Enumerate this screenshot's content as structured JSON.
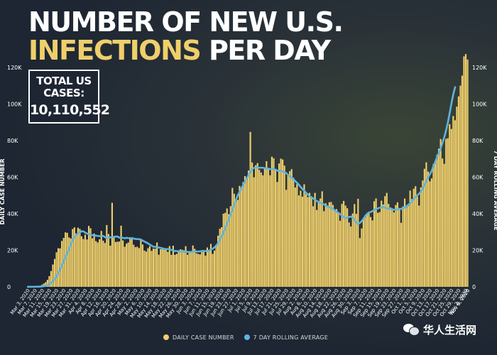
{
  "title": {
    "line1": "NUMBER OF NEW U.S.",
    "line2_highlight": "INFECTIONS",
    "line2_rest": " PER DAY"
  },
  "total_box": {
    "label": "TOTAL US CASES:",
    "value": "10,110,552"
  },
  "legend": {
    "daily": "DAILY CASE NUMBER",
    "avg": "7 DAY ROLLING AVERAGE"
  },
  "watermark": "华人生活网",
  "colors": {
    "bar": "#efcf6c",
    "line": "#5fb4de",
    "background": "#1d2632",
    "title_highlight": "#efcf6c",
    "text": "#ffffff"
  },
  "chart_data": {
    "type": "bar",
    "title": "NUMBER OF NEW U.S. INFECTIONS PER DAY",
    "ylabel_left": "DAILY CASE NUMBER",
    "ylabel_right": "7 DAY ROLLING AVERAGE",
    "ylim": [
      0,
      120000
    ],
    "yticks": [
      0,
      20000,
      40000,
      60000,
      80000,
      100000,
      120000
    ],
    "ytick_labels": [
      "0",
      "20K",
      "40K",
      "60K",
      "80K",
      "100K",
      "120K"
    ],
    "grid": false,
    "legend_position": "bottom",
    "x_tick_labels": [
      "Mar 3, 2020",
      "Mar 7, 2020",
      "Mar 11, 2020",
      "Mar 15, 2020",
      "Mar 19, 2020",
      "Mar 23, 2020",
      "Mar 27, 2020",
      "Mar 31, 2020",
      "Apr 4, 2020",
      "Apr 8, 2020",
      "Apr 12, 2020",
      "Apr 16, 2020",
      "Apr 20, 2020",
      "Apr 24, 2020",
      "Apr 28, 2020",
      "May 2, 2020",
      "May 6, 2020",
      "May 10, 2020",
      "May 14, 2020",
      "May 18, 2020",
      "May 22, 2020",
      "May 26, 2020",
      "May 30, 2020",
      "Jun 3, 2020",
      "Jun 7, 2020",
      "Jun 11, 2020",
      "Jun 15, 2020",
      "Jun 19, 2020",
      "Jun 23, 2020",
      "Jun 27, 2020",
      "Jul 1, 2020",
      "Jul 5, 2020",
      "Jul 9, 2020",
      "Jul 13, 2020",
      "Jul 17, 2020",
      "Jul 21, 2020",
      "Jul 25, 2020",
      "Jul 29, 2020",
      "Aug 2, 2020",
      "Aug 6, 2020",
      "Aug 10, 2020",
      "Aug 14, 2020",
      "Aug 18, 2020",
      "Aug 22, 2020",
      "Aug 26, 2020",
      "Aug 30, 2020",
      "Sep 3, 2020",
      "Sep 7, 2020",
      "Sep 11, 2020",
      "Sep 15, 2020",
      "Sep 19, 2020",
      "Sep 23, 2020",
      "Sep 27, 2020",
      "Oct 1, 2020",
      "Oct 5, 2020",
      "Oct 9, 2020",
      "Oct 13, 2020",
      "Oct 17, 2020",
      "Oct 21, 2020",
      "Oct 25, 2020",
      "Oct 29, 2020",
      "Nov 2, 2020",
      "Nov 6, 2020",
      "Nov 9, 2020"
    ],
    "x_tick_every": 4,
    "series": [
      {
        "name": "DAILY CASE NUMBER",
        "type": "bar",
        "values": [
          23,
          41,
          58,
          74,
          103,
          161,
          339,
          540,
          1180,
          1820,
          2560,
          3830,
          5860,
          8640,
          12220,
          15240,
          18880,
          21110,
          21040,
          25100,
          26760,
          29810,
          29540,
          27060,
          26480,
          31650,
          32540,
          29230,
          32360,
          31690,
          27640,
          26130,
          28520,
          25900,
          33330,
          32060,
          26520,
          29130,
          25010,
          24300,
          26010,
          30570,
          25240,
          24010,
          33810,
          28940,
          22520,
          45960,
          27270,
          24510,
          24770,
          24740,
          33460,
          25390,
          21950,
          23640,
          24270,
          27050,
          26410,
          23030,
          21720,
          21960,
          21200,
          26040,
          23170,
          19850,
          19280,
          21130,
          22220,
          19690,
          20940,
          20860,
          24260,
          17590,
          20600,
          20720,
          20300,
          20690,
          19110,
          22310,
          17510,
          22500,
          17530,
          18020,
          19250,
          20490,
          20300,
          19970,
          22240,
          17540,
          19380,
          19340,
          22630,
          20780,
          18360,
          18020,
          17760,
          19020,
          19060,
          17100,
          21530,
          19920,
          23470,
          18050,
          19810,
          23090,
          27990,
          31770,
          32630,
          40020,
          40480,
          42880,
          39780,
          44150,
          54110,
          50930,
          47260,
          47540,
          55220,
          53450,
          57270,
          60580,
          59570,
          63640,
          84740,
          68040,
          59930,
          66520,
          67680,
          63950,
          62520,
          60990,
          65320,
          68720,
          65040,
          61010,
          71200,
          70370,
          64120,
          57370,
          67480,
          70140,
          69650,
          66320,
          53080,
          61040,
          63330,
          64370,
          59700,
          54330,
          56180,
          50010,
          52620,
          49310,
          56080,
          50700,
          49130,
          51400,
          49500,
          44070,
          51400,
          42020,
          46570,
          48340,
          52260,
          41400,
          45690,
          43900,
          46290,
          46380,
          44810,
          41640,
          42510,
          40960,
          36150,
          45370,
          46980,
          44470,
          42980,
          35210,
          33020,
          40150,
          45270,
          39940,
          48170,
          26690,
          31930,
          37690,
          38160,
          39730,
          41110,
          38170,
          36370,
          46810,
          48350,
          40480,
          40900,
          47120,
          45060,
          49610,
          51390,
          45350,
          42730,
          41940,
          40720,
          44760,
          46250,
          42350,
          35000,
          44000,
          48290,
          43440,
          44200,
          52650,
          48010,
          53660,
          55050,
          49450,
          44460,
          54440,
          58160,
          64560,
          68110,
          63060,
          57730,
          59290,
          67170,
          68060,
          72310,
          75630,
          80870,
          70170,
          67280,
          80910,
          81320,
          88960,
          86350,
          93450,
          91120,
          98590,
          104150,
          110050,
          115530,
          126060,
          127320,
          124350
        ]
      },
      {
        "name": "7 DAY ROLLING AVERAGE",
        "type": "line",
        "values": [
          23,
          32,
          41,
          49,
          60,
          77,
          114,
          167,
          281,
          411,
          571,
          921,
          1349,
          2091,
          3117,
          4347,
          5941,
          7751,
          9551,
          11661,
          13991,
          16580,
          18650,
          20840,
          23400,
          25730,
          27400,
          28480,
          29160,
          29820,
          30400,
          30340,
          29600,
          29150,
          28740,
          28620,
          28290,
          28090,
          28000,
          27850,
          27740,
          27680,
          27850,
          27140,
          26750,
          27040,
          27020,
          27160,
          27380,
          27530,
          27490,
          26890,
          26850,
          26820,
          26530,
          26830,
          26650,
          26590,
          26620,
          26380,
          26180,
          26120,
          26060,
          25810,
          25240,
          24740,
          24270,
          23680,
          23080,
          22460,
          21910,
          21880,
          21640,
          21490,
          21310,
          21060,
          20780,
          20670,
          20670,
          20420,
          20180,
          19910,
          19580,
          19510,
          19500,
          19340,
          19230,
          19110,
          19140,
          19100,
          19110,
          19060,
          19420,
          19340,
          19340,
          19340,
          19390,
          19660,
          19640,
          19540,
          19570,
          19820,
          20440,
          20870,
          21660,
          22490,
          24030,
          25930,
          27540,
          29830,
          32270,
          34530,
          37200,
          39850,
          42370,
          45050,
          47820,
          50330,
          51960,
          54030,
          55720,
          57740,
          59320,
          61370,
          63150,
          64380,
          65100,
          65150,
          65350,
          65110,
          65140,
          65140,
          64850,
          64710,
          64650,
          64350,
          64470,
          64360,
          64060,
          63580,
          63520,
          63540,
          63010,
          62840,
          62090,
          61220,
          60300,
          59730,
          58730,
          57790,
          56820,
          55800,
          54540,
          53470,
          52470,
          51420,
          50420,
          49600,
          48900,
          48300,
          47510,
          46940,
          46440,
          45890,
          45400,
          45050,
          44480,
          43940,
          43530,
          43130,
          42620,
          41720,
          41070,
          40440,
          39690,
          39000,
          38050,
          37530,
          37810,
          38260,
          38410,
          37780,
          36710,
          35070,
          34350,
          34990,
          36010,
          37180,
          38880,
          39970,
          40610,
          40940,
          41430,
          42170,
          42590,
          42880,
          43310,
          43480,
          43660,
          43310,
          42850,
          42850,
          43000,
          42410,
          42150,
          42190,
          42400,
          42710,
          42650,
          43030,
          43570,
          44100,
          44960,
          45700,
          46780,
          48130,
          49180,
          50140,
          51060,
          52260,
          53940,
          55920,
          57990,
          60000,
          61700,
          63520,
          66220,
          68590,
          71080,
          73340,
          75960,
          78980,
          82030,
          85780,
          90130,
          95250,
          100650,
          105510,
          109230
        ]
      }
    ]
  }
}
